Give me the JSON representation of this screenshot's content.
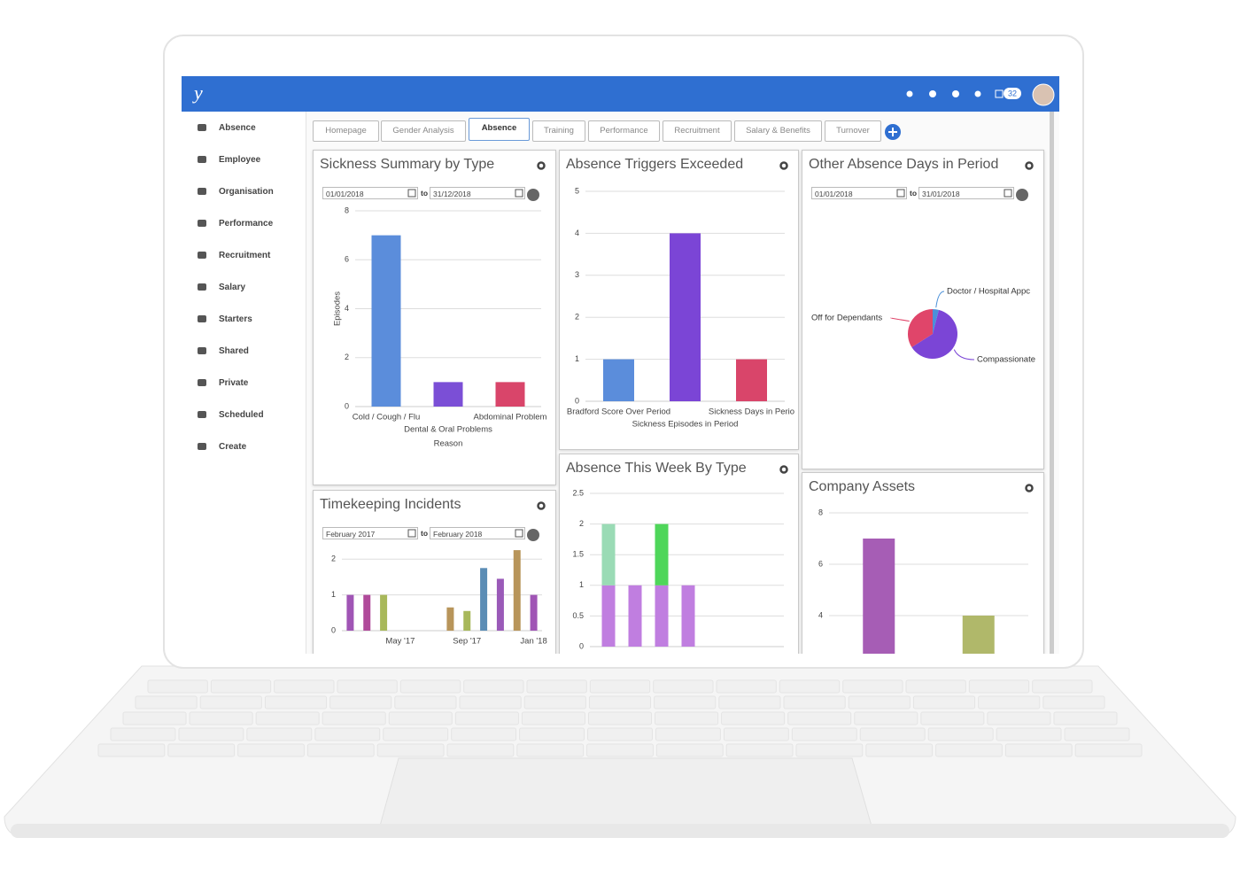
{
  "header": {
    "logo": "y",
    "badge": "32"
  },
  "sidebar": [
    "Absence",
    "Employee",
    "Organisation",
    "Performance",
    "Recruitment",
    "Salary",
    "Starters",
    "Shared",
    "Private",
    "Scheduled",
    "Create"
  ],
  "tabs": [
    "Homepage",
    "Gender Analysis",
    "Absence",
    "Training",
    "Performance",
    "Recruitment",
    "Salary & Benefits",
    "Turnover"
  ],
  "active_tab": 2,
  "widgets": [
    {
      "title": "Sickness Summary by Type",
      "dates": {
        "from": "01/01/2018",
        "to_label": "to",
        "to": "31/12/2018"
      },
      "chart": {
        "type": "bar",
        "categories": [
          "Cold / Cough / Flu",
          "Dental & Oral Problems",
          "Abdominal Problem"
        ],
        "values": [
          7,
          1,
          1
        ],
        "colors": [
          "#5b8ddb",
          "#7b4fd6",
          "#d9456a"
        ],
        "ylim": [
          0,
          8
        ],
        "yticks": [
          0,
          2,
          4,
          6,
          8
        ],
        "y_label": "Episodes",
        "x_label": "Reason",
        "grid": true
      }
    },
    {
      "title": "Absence Triggers Exceeded",
      "chart": {
        "type": "bar",
        "categories": [
          "Bradford Score Over Period",
          "Sickness Episodes in Period",
          "Sickness Days in Perio"
        ],
        "values": [
          1,
          4,
          1
        ],
        "colors": [
          "#5b8ddb",
          "#7b45d6",
          "#d9456a"
        ],
        "ylim": [
          0,
          5
        ],
        "yticks": [
          0,
          1,
          2,
          3,
          4,
          5
        ],
        "grid": true
      }
    },
    {
      "title": "Other Absence Days in Period",
      "dates": {
        "from": "01/01/2018",
        "to_label": "to",
        "to": "31/01/2018"
      },
      "chart": {
        "type": "pie",
        "labels": [
          "Doctor / Hospital Appc",
          "Compassionate",
          "Off for Dependants"
        ],
        "values": [
          4,
          62,
          34
        ],
        "colors": [
          "#4a90d9",
          "#7b45d6",
          "#e0456a"
        ]
      }
    },
    {
      "title": "Timekeeping Incidents",
      "dates": {
        "from": "February 2017",
        "to_label": "to",
        "to": "February 2018"
      },
      "chart": {
        "type": "bar",
        "categories": [
          null,
          null,
          null,
          "May '17",
          null,
          null,
          null,
          "Sep '17",
          null,
          null,
          null,
          "Jan '18"
        ],
        "values": [
          1,
          1,
          1,
          null,
          null,
          null,
          0.65,
          0.55,
          1.75,
          1.45,
          2.25,
          1
        ],
        "colors": [
          "#a055b5",
          "#b04a9a",
          "#a8b85a",
          "#a055b5",
          "#a055b5",
          "#a055b5",
          "#b8955a",
          "#a8b85a",
          "#5b8db5",
          "#9a5ab8",
          "#b8955a",
          "#a055b5"
        ],
        "ylim": [
          0,
          2.5
        ],
        "yticks": [
          0,
          1,
          2
        ],
        "grid": true
      }
    },
    {
      "title": "Absence This Week By Type",
      "chart": {
        "type": "stacked_bar",
        "categories": [
          null,
          null,
          null,
          null
        ],
        "series": [
          {
            "color": "#c07ee0",
            "values": [
              1,
              1,
              1,
              1
            ]
          },
          {
            "color": "#9adbb5",
            "values": [
              1,
              null,
              null,
              null
            ]
          },
          {
            "color": "#4fd65a",
            "values": [
              null,
              null,
              1,
              null
            ]
          }
        ],
        "ylim": [
          0,
          2.5
        ],
        "yticks": [
          0,
          0.5,
          1,
          1.5,
          2,
          2.5
        ],
        "grid": true
      }
    },
    {
      "title": "Company Assets",
      "chart": {
        "type": "bar",
        "categories": [
          null,
          null
        ],
        "values": [
          7,
          4
        ],
        "colors": [
          "#a65db5",
          "#b0b86a"
        ],
        "ylim": [
          0,
          8
        ],
        "yticks": [
          4,
          6,
          8
        ],
        "grid": true
      }
    }
  ]
}
